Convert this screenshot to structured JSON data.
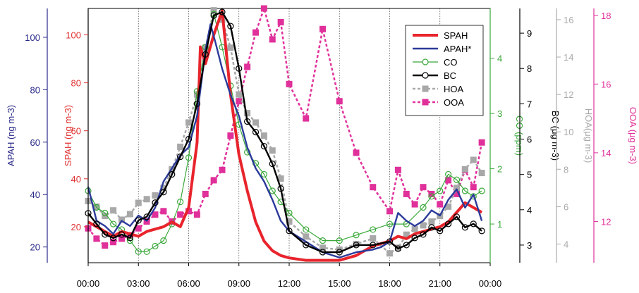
{
  "chart_data": {
    "type": "line",
    "title": "",
    "xlabel": "",
    "x_tick_labels": [
      "00:00",
      "03:00",
      "06:00",
      "09:00",
      "12:00",
      "15:00",
      "18:00",
      "21:00",
      "00:00"
    ],
    "xlim_hours": [
      0,
      24
    ],
    "grid": "vertical dotted lines every 3 hours",
    "legend_position": "top-right",
    "axes": [
      {
        "id": "apah",
        "label": "APAH (ng m-3)",
        "ticks": [
          "20",
          "40",
          "60",
          "80",
          "100"
        ],
        "range": [
          14,
          111
        ],
        "color": "#2a2a8a",
        "side": "left"
      },
      {
        "id": "spah",
        "label": "SPAH (ng m-3)",
        "ticks": [
          "20",
          "40",
          "60",
          "80",
          "100"
        ],
        "range": [
          5,
          111
        ],
        "color": "#e03030",
        "side": "left"
      },
      {
        "id": "co",
        "label": "CO (ppm)",
        "ticks": [
          "1",
          "2",
          "3",
          "4"
        ],
        "range": [
          0.3,
          4.9
        ],
        "color": "#3aa83a",
        "side": "right"
      },
      {
        "id": "bc",
        "label": "BC (μg m-3)",
        "ticks": [
          "3",
          "4",
          "5",
          "6",
          "7",
          "8",
          "9"
        ],
        "range": [
          2.5,
          9.7
        ],
        "color": "#000000",
        "side": "right"
      },
      {
        "id": "hoa",
        "label": "HOA(μg m-3)",
        "ticks": [
          "4",
          "6",
          "8",
          "10",
          "12",
          "14",
          "16"
        ],
        "range": [
          3.0,
          16.6
        ],
        "color": "#aaaaaa",
        "side": "right"
      },
      {
        "id": "ooa",
        "label": "OOA (μg m-3)",
        "ticks": [
          "12",
          "14",
          "16",
          "18"
        ],
        "range": [
          10.8,
          18.2
        ],
        "color": "#e0309a",
        "side": "right"
      }
    ],
    "series": [
      {
        "name": "SPAH",
        "axis": "spah",
        "color": "#e8242c",
        "style": "thick",
        "marker": "none",
        "x": [
          0,
          0.5,
          1,
          1.5,
          2,
          2.5,
          3,
          3.5,
          4,
          4.5,
          5,
          5.5,
          6,
          6.5,
          6.7,
          7,
          7.5,
          8,
          8.5,
          9,
          9.5,
          10,
          10.5,
          11,
          11.5,
          12,
          13,
          14,
          15,
          16,
          17,
          18,
          18.5,
          19,
          19.5,
          20,
          20.5,
          21,
          21.5,
          22,
          22.5,
          23,
          23.5
        ],
        "values": [
          22,
          20,
          18,
          16,
          18,
          17,
          16,
          18,
          19,
          20,
          22,
          20,
          28,
          55,
          95,
          88,
          100,
          110,
          75,
          50,
          35,
          22,
          14,
          10,
          8,
          7,
          6,
          6,
          6,
          8,
          12,
          14,
          16,
          15,
          17,
          18,
          19,
          20,
          22,
          26,
          30,
          28,
          26
        ]
      },
      {
        "name": "APAH*",
        "axis": "apah",
        "color": "#2b3a9a",
        "style": "medium",
        "marker": "none",
        "x": [
          0,
          0.5,
          1,
          1.5,
          2,
          2.5,
          3,
          3.5,
          4,
          4.5,
          5,
          5.5,
          6,
          6.5,
          7,
          7.3,
          7.6,
          8,
          8.5,
          9,
          9.5,
          10,
          10.5,
          11,
          11.5,
          12,
          13,
          14,
          15,
          16,
          17,
          17.5,
          18,
          18.5,
          19,
          19.5,
          20,
          20.5,
          21,
          21.5,
          22,
          22.5,
          23,
          23.5
        ],
        "values": [
          43,
          30,
          28,
          25,
          30,
          28,
          32,
          30,
          35,
          45,
          50,
          55,
          58,
          70,
          95,
          105,
          98,
          88,
          78,
          70,
          58,
          50,
          45,
          38,
          30,
          26,
          22,
          18,
          16,
          18,
          19,
          20,
          22,
          33,
          30,
          28,
          30,
          34,
          32,
          38,
          42,
          35,
          40,
          30
        ]
      },
      {
        "name": "CO",
        "axis": "co",
        "color": "#3aa83a",
        "style": "thin",
        "marker": "open-circle",
        "x": [
          0,
          0.5,
          1,
          1.5,
          2,
          2.5,
          3,
          3.5,
          4,
          4.5,
          5,
          5.5,
          6,
          6.5,
          7,
          7.5,
          8,
          8.5,
          9,
          9.5,
          10,
          10.5,
          11,
          11.5,
          12,
          13,
          14,
          15,
          16,
          17,
          18,
          19,
          20,
          20.5,
          21,
          21.5,
          22,
          22.5,
          23,
          23.5
        ],
        "values": [
          1.6,
          1.3,
          1.2,
          1.0,
          0.9,
          0.7,
          0.5,
          0.5,
          0.6,
          0.7,
          1.0,
          1.4,
          2.2,
          3.4,
          4.2,
          4.8,
          4.2,
          3.5,
          2.8,
          2.3,
          2.1,
          1.9,
          1.6,
          1.4,
          1.2,
          0.9,
          0.7,
          0.7,
          0.8,
          0.9,
          1.0,
          1.0,
          1.3,
          1.5,
          1.6,
          1.9,
          1.8,
          1.6,
          1.5,
          1.6
        ]
      },
      {
        "name": "BC",
        "axis": "bc",
        "color": "#000000",
        "style": "medium",
        "marker": "open-circle",
        "x": [
          0,
          0.5,
          1,
          1.5,
          2,
          2.5,
          3,
          3.5,
          4,
          4.5,
          5,
          5.5,
          6,
          6.5,
          7,
          7.5,
          8,
          8.5,
          9,
          9.5,
          10,
          10.5,
          11,
          11.5,
          12,
          13,
          14,
          15,
          16,
          17,
          18,
          18.5,
          19,
          19.5,
          20,
          20.5,
          21,
          21.5,
          22,
          22.5,
          23,
          23.5
        ],
        "values": [
          3.9,
          3.6,
          3.3,
          3.2,
          3.3,
          3.2,
          3.7,
          3.8,
          4.2,
          4.5,
          5.0,
          5.5,
          6.0,
          7.0,
          8.4,
          9.5,
          9.6,
          9.2,
          8.0,
          6.5,
          6.2,
          5.8,
          5.3,
          4.6,
          3.4,
          3.0,
          2.8,
          2.8,
          3.0,
          3.0,
          3.1,
          2.9,
          3.0,
          3.2,
          3.3,
          3.5,
          3.4,
          3.6,
          3.8,
          3.5,
          3.6,
          3.4
        ]
      },
      {
        "name": "HOA",
        "axis": "hoa",
        "color": "#a8a8a8",
        "style": "dashed",
        "marker": "square",
        "x": [
          0,
          0.5,
          1,
          1.5,
          2,
          2.5,
          3,
          3.5,
          4,
          4.5,
          5,
          5.5,
          6,
          6.5,
          7,
          7.5,
          8,
          8.5,
          9,
          9.5,
          10,
          10.5,
          11,
          11.5,
          12,
          13,
          14,
          15,
          16,
          17,
          18,
          18.5,
          19,
          19.5,
          20,
          20.5,
          21,
          21.5,
          22,
          22.5,
          23,
          23.5
        ],
        "values": [
          6.3,
          6.0,
          5.5,
          5.8,
          5.3,
          5.6,
          6.2,
          6.4,
          6.6,
          7.0,
          8.0,
          9.2,
          10.5,
          12.0,
          14.5,
          16.5,
          16.0,
          14.5,
          12.0,
          11.0,
          10.5,
          9.8,
          9.0,
          7.5,
          5.2,
          4.4,
          3.8,
          3.7,
          4.0,
          4.3,
          3.5,
          3.8,
          4.5,
          4.8,
          5.0,
          5.2,
          5.5,
          6.0,
          7.0,
          8.0,
          8.5,
          7.8
        ]
      },
      {
        "name": "OOA",
        "axis": "ooa",
        "color": "#e0309a",
        "style": "dashed",
        "marker": "square",
        "x": [
          0,
          0.5,
          1,
          1.5,
          2,
          2.5,
          3,
          3.5,
          4,
          4.5,
          5,
          5.5,
          6,
          6.5,
          7,
          7.5,
          8,
          8.5,
          9,
          9.5,
          10,
          10.5,
          11,
          11.5,
          12,
          13,
          14,
          15,
          16,
          17,
          18,
          18.5,
          19,
          19.5,
          20,
          20.5,
          21,
          21.5,
          22,
          22.5,
          23,
          23.5
        ],
        "values": [
          11.8,
          11.5,
          11.3,
          11.4,
          11.5,
          11.6,
          11.8,
          12.0,
          12.2,
          12.3,
          12.0,
          12.2,
          12.3,
          12.2,
          12.8,
          13.2,
          13.5,
          14.5,
          15.5,
          16.5,
          17.5,
          18.2,
          17.3,
          17.8,
          16.0,
          15.0,
          17.6,
          15.5,
          14.0,
          13.0,
          12.3,
          13.5,
          12.8,
          12.5,
          13.0,
          12.8,
          12.5,
          13.2,
          12.8,
          13.5,
          13.0,
          14.3
        ]
      }
    ]
  }
}
